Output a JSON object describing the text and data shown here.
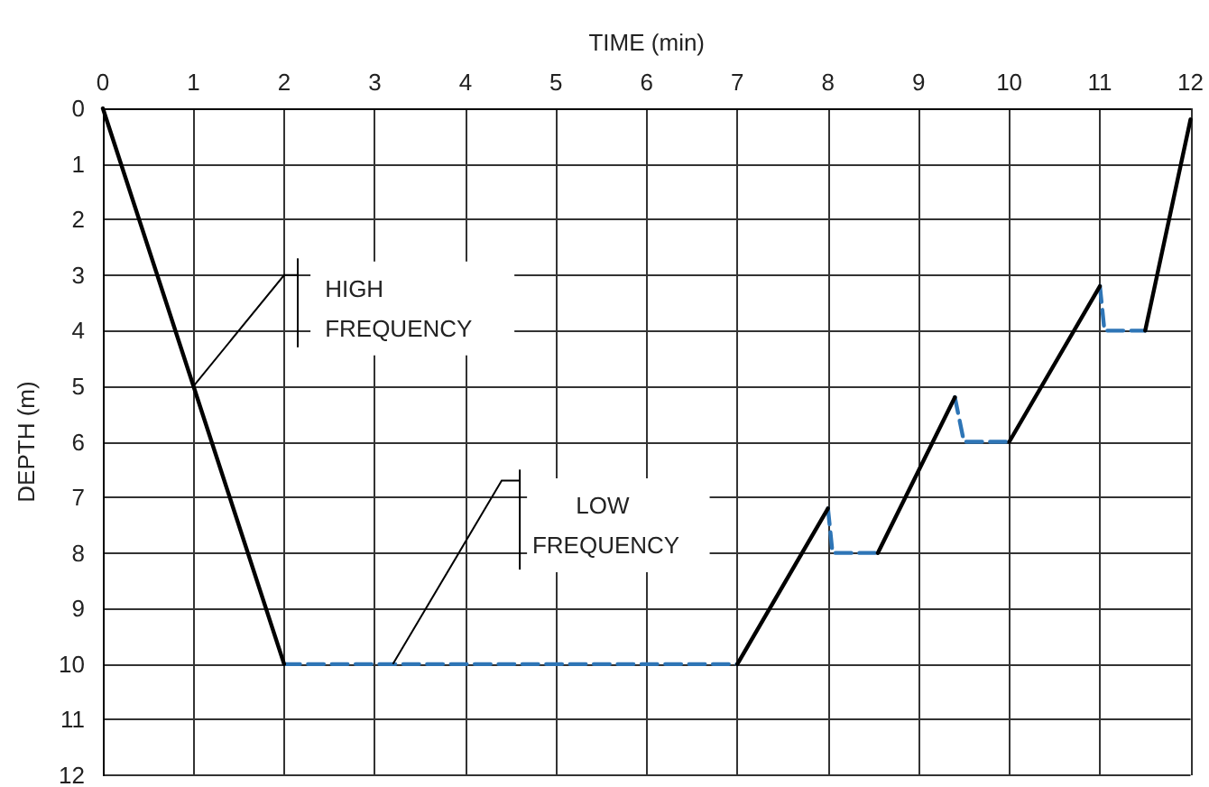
{
  "chart_data": {
    "type": "line",
    "xlabel": "TIME (min)",
    "ylabel": "DEPTH (m)",
    "xlim": [
      0,
      12
    ],
    "xticks": [
      0,
      1,
      2,
      3,
      4,
      5,
      6,
      7,
      8,
      9,
      10,
      11,
      12
    ],
    "ylim": [
      12,
      0
    ],
    "yticks": [
      0,
      1,
      2,
      3,
      4,
      5,
      6,
      7,
      8,
      9,
      10,
      11,
      12
    ],
    "grid": true,
    "marker": "none",
    "series": [
      {
        "color": "#000000",
        "line_style": "solid",
        "x": [
          0,
          2
        ],
        "values": [
          0,
          10
        ]
      },
      {
        "color": "#2e75b6",
        "line_style": "dashed",
        "x": [
          2,
          7
        ],
        "values": [
          10,
          10
        ]
      },
      {
        "color": "#000000",
        "line_style": "solid",
        "x": [
          7,
          8
        ],
        "values": [
          10,
          7.2
        ]
      },
      {
        "color": "#2e75b6",
        "line_style": "dashed",
        "x": [
          8,
          8.05,
          8.55
        ],
        "values": [
          7.2,
          8,
          8
        ]
      },
      {
        "color": "#000000",
        "line_style": "solid",
        "x": [
          8.55,
          9.4
        ],
        "values": [
          8,
          5.2
        ]
      },
      {
        "color": "#2e75b6",
        "line_style": "dashed",
        "x": [
          9.4,
          9.5,
          10
        ],
        "values": [
          5.2,
          6,
          6
        ]
      },
      {
        "color": "#000000",
        "line_style": "solid",
        "x": [
          10,
          11
        ],
        "values": [
          6,
          3.2
        ]
      },
      {
        "color": "#2e75b6",
        "line_style": "dashed",
        "x": [
          11,
          11.05,
          11.5
        ],
        "values": [
          3.2,
          4,
          4
        ]
      },
      {
        "color": "#000000",
        "line_style": "solid",
        "x": [
          11.5,
          12
        ],
        "values": [
          4,
          0.2
        ]
      }
    ],
    "annotations": [
      {
        "text": "HIGH FREQUENCY",
        "x": 1,
        "y": 5
      },
      {
        "text": "LOW FREQUENCY",
        "x": 3.2,
        "y": 10
      }
    ]
  }
}
